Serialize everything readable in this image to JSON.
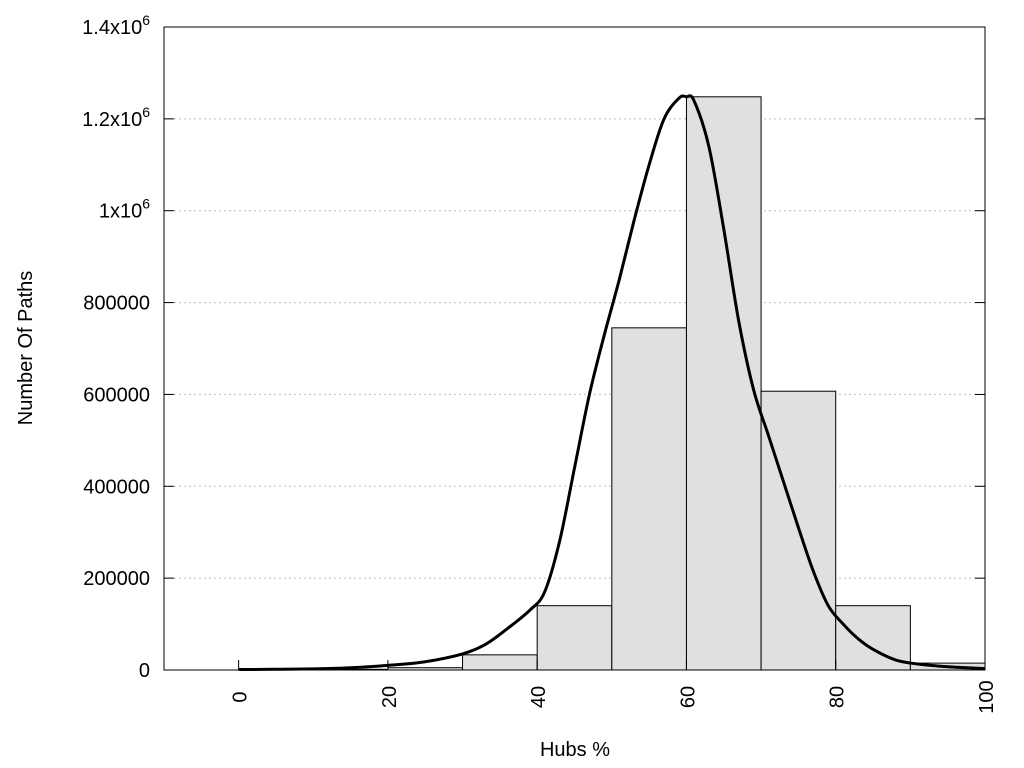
{
  "chart_data": {
    "type": "bar",
    "xlabel": "Hubs %",
    "ylabel": "Number Of Paths",
    "xlim": [
      -10,
      100
    ],
    "ylim": [
      0,
      1400000
    ],
    "grid": "horizontal-dotted",
    "legend": "none",
    "x_ticks": [
      {
        "value": 0,
        "label": "0"
      },
      {
        "value": 20,
        "label": "20"
      },
      {
        "value": 40,
        "label": "40"
      },
      {
        "value": 60,
        "label": "60"
      },
      {
        "value": 80,
        "label": "80"
      },
      {
        "value": 100,
        "label": "100"
      }
    ],
    "y_ticks": [
      {
        "value": 0,
        "base": "0",
        "exp": ""
      },
      {
        "value": 200000,
        "base": "200000",
        "exp": ""
      },
      {
        "value": 400000,
        "base": "400000",
        "exp": ""
      },
      {
        "value": 600000,
        "base": "600000",
        "exp": ""
      },
      {
        "value": 800000,
        "base": "800000",
        "exp": ""
      },
      {
        "value": 1000000,
        "base": "1x10",
        "exp": "6"
      },
      {
        "value": 1200000,
        "base": "1.2x10",
        "exp": "6"
      },
      {
        "value": 1400000,
        "base": "1.4x10",
        "exp": "6"
      }
    ],
    "bin_width": 10,
    "bins": [
      0,
      10,
      20,
      30,
      40,
      50,
      60,
      70,
      80,
      90
    ],
    "values": [
      1000,
      1500,
      5000,
      33000,
      140000,
      745000,
      1248000,
      607000,
      140000,
      15000
    ],
    "fit_curve": {
      "x": [
        0,
        5,
        10,
        15,
        20,
        25,
        30,
        33,
        36,
        39,
        41,
        43,
        45,
        47,
        49,
        51,
        53,
        55,
        57,
        59,
        60,
        61,
        63,
        65,
        67,
        69,
        71,
        73,
        75,
        77,
        79,
        81,
        83,
        85,
        88,
        91,
        95,
        100
      ],
      "y": [
        1000,
        1500,
        2500,
        5000,
        10000,
        18000,
        35000,
        55000,
        90000,
        130000,
        170000,
        280000,
        440000,
        600000,
        730000,
        850000,
        980000,
        1100000,
        1200000,
        1245000,
        1248000,
        1240000,
        1140000,
        960000,
        760000,
        610000,
        510000,
        410000,
        310000,
        215000,
        140000,
        100000,
        68000,
        45000,
        22000,
        13000,
        7000,
        3000
      ]
    }
  }
}
